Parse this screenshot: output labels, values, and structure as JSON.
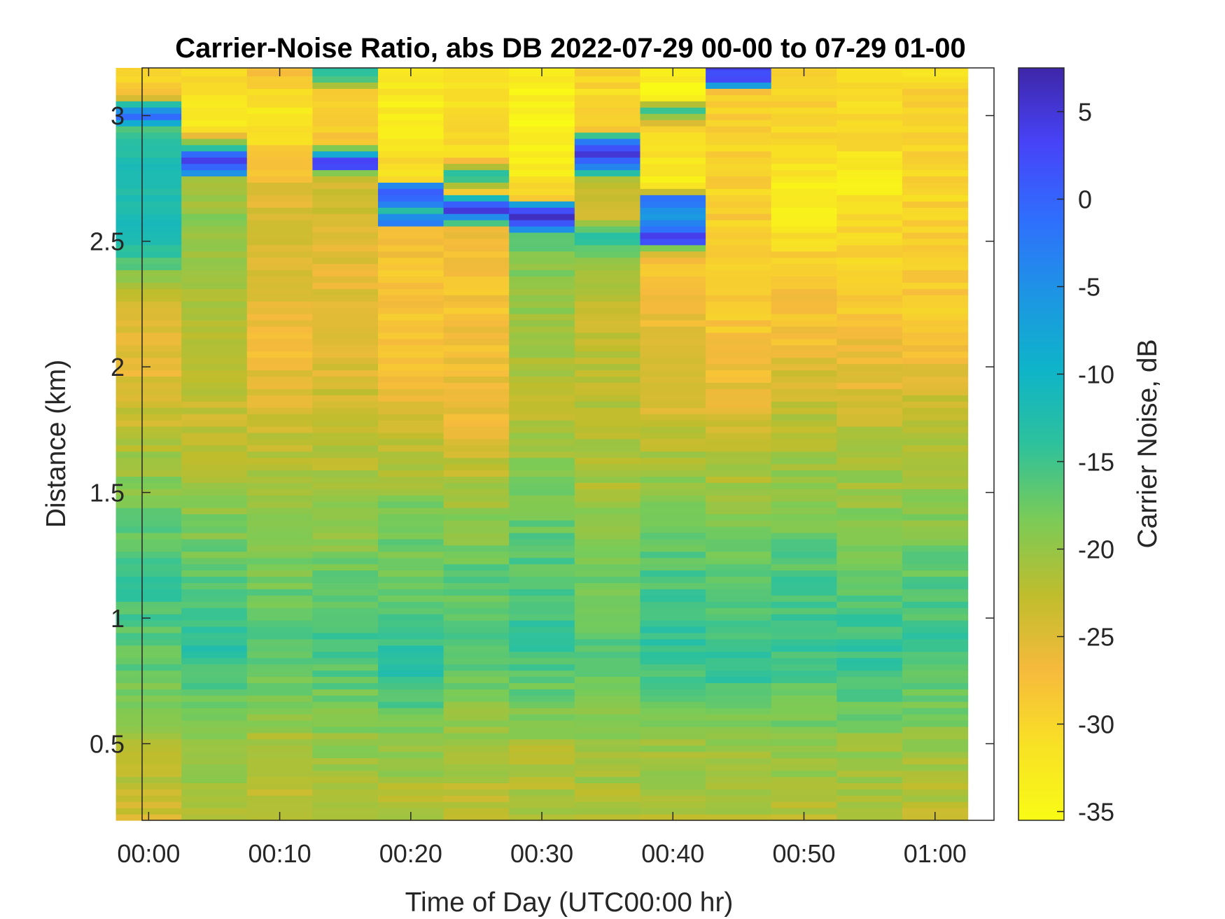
{
  "chart_data": {
    "type": "heatmap",
    "title": "Carrier-Noise Ratio, abs DB 2022-07-29 00-00 to 07-29 01-00",
    "xlabel": "Time of Day (UTC00:00 hr)",
    "ylabel": "Distance (km)",
    "colorbar_label": "Carrier Noise, dB",
    "x_unit": "minutes after 00:00",
    "xlim": [
      -0.5,
      64.5
    ],
    "ylim": [
      0.195,
      3.19
    ],
    "clim": [
      -35.5,
      7.5
    ],
    "x_ticks": [
      0,
      10,
      20,
      30,
      40,
      50,
      60
    ],
    "x_tick_labels": [
      "00:00",
      "00:10",
      "00:20",
      "00:30",
      "00:40",
      "00:50",
      "01:00"
    ],
    "y_ticks": [
      0.5,
      1,
      1.5,
      2,
      2.5,
      3
    ],
    "y_tick_labels": [
      "0.5",
      "1",
      "1.5",
      "2",
      "2.5",
      "3"
    ],
    "colorbar_ticks": [
      5,
      0,
      -5,
      -10,
      -15,
      -20,
      -25,
      -30,
      -35
    ],
    "colorbar_tick_labels": [
      "5",
      "0",
      "-5",
      "-10",
      "-15",
      "-20",
      "-25",
      "-30",
      "-35"
    ],
    "colormap": "parula",
    "colormap_stops": [
      "#3e26a8",
      "#4743f8",
      "#2f6efd",
      "#1d95e4",
      "#0eb4c9",
      "#2dc19c",
      "#7acb57",
      "#bfbd2d",
      "#f6ba3c",
      "#f8e125",
      "#f9fb15"
    ],
    "grid": false,
    "times": [
      0,
      5,
      10,
      15,
      20,
      25,
      30,
      35,
      40,
      45,
      50,
      55,
      60
    ],
    "profiles": [
      {
        "time": 0,
        "points": [
          [
            0.2,
            -24
          ],
          [
            0.5,
            -21
          ],
          [
            0.8,
            -17
          ],
          [
            1.1,
            -15
          ],
          [
            1.4,
            -17
          ],
          [
            1.7,
            -22
          ],
          [
            2.0,
            -26
          ],
          [
            2.3,
            -24
          ],
          [
            2.45,
            -13
          ],
          [
            2.6,
            -12
          ],
          [
            2.8,
            -13
          ],
          [
            2.95,
            -16
          ],
          [
            3.0,
            0
          ],
          [
            3.04,
            -10
          ],
          [
            3.08,
            -28
          ],
          [
            3.19,
            -31
          ]
        ]
      },
      {
        "time": 5,
        "points": [
          [
            0.2,
            -21
          ],
          [
            0.5,
            -20
          ],
          [
            0.9,
            -13
          ],
          [
            1.2,
            -17
          ],
          [
            1.5,
            -20
          ],
          [
            1.8,
            -23
          ],
          [
            2.1,
            -22
          ],
          [
            2.4,
            -20
          ],
          [
            2.6,
            -19
          ],
          [
            2.75,
            -22
          ],
          [
            2.78,
            0
          ],
          [
            2.84,
            4
          ],
          [
            2.87,
            -14
          ],
          [
            2.95,
            -32
          ],
          [
            3.19,
            -31
          ]
        ]
      },
      {
        "time": 10,
        "points": [
          [
            0.2,
            -23
          ],
          [
            0.5,
            -21
          ],
          [
            0.9,
            -16
          ],
          [
            1.2,
            -18
          ],
          [
            1.5,
            -21
          ],
          [
            1.8,
            -24
          ],
          [
            2.1,
            -27
          ],
          [
            2.4,
            -25
          ],
          [
            2.7,
            -25
          ],
          [
            2.8,
            -28
          ],
          [
            3.0,
            -33
          ],
          [
            3.19,
            -27
          ]
        ]
      },
      {
        "time": 15,
        "points": [
          [
            0.2,
            -22
          ],
          [
            0.5,
            -20
          ],
          [
            0.9,
            -15
          ],
          [
            1.2,
            -18
          ],
          [
            1.5,
            -21
          ],
          [
            1.8,
            -23
          ],
          [
            2.1,
            -26
          ],
          [
            2.4,
            -25
          ],
          [
            2.7,
            -24
          ],
          [
            2.77,
            -22
          ],
          [
            2.79,
            3
          ],
          [
            2.83,
            2
          ],
          [
            2.86,
            -15
          ],
          [
            2.9,
            -29
          ],
          [
            3.1,
            -29
          ],
          [
            3.15,
            -13
          ],
          [
            3.19,
            -13
          ]
        ]
      },
      {
        "time": 20,
        "points": [
          [
            0.2,
            -22
          ],
          [
            0.5,
            -20
          ],
          [
            0.8,
            -13
          ],
          [
            1.1,
            -17
          ],
          [
            1.4,
            -18
          ],
          [
            1.7,
            -23
          ],
          [
            2.0,
            -27
          ],
          [
            2.3,
            -28
          ],
          [
            2.55,
            -27
          ],
          [
            2.58,
            3
          ],
          [
            2.62,
            -13
          ],
          [
            2.66,
            1
          ],
          [
            2.72,
            -2
          ],
          [
            2.74,
            -30
          ],
          [
            3.0,
            -33
          ],
          [
            3.19,
            -32
          ]
        ]
      },
      {
        "time": 25,
        "points": [
          [
            0.2,
            -23
          ],
          [
            0.5,
            -21
          ],
          [
            0.9,
            -16
          ],
          [
            1.2,
            -17
          ],
          [
            1.5,
            -21
          ],
          [
            1.8,
            -26
          ],
          [
            2.1,
            -27
          ],
          [
            2.4,
            -28
          ],
          [
            2.55,
            -26
          ],
          [
            2.59,
            -8
          ],
          [
            2.62,
            4
          ],
          [
            2.66,
            -1
          ],
          [
            2.7,
            -29
          ],
          [
            2.76,
            -12
          ],
          [
            2.83,
            -30
          ],
          [
            3.0,
            -31
          ],
          [
            3.19,
            -30
          ]
        ]
      },
      {
        "time": 30,
        "points": [
          [
            0.2,
            -22
          ],
          [
            0.5,
            -21
          ],
          [
            0.9,
            -14
          ],
          [
            1.2,
            -16
          ],
          [
            1.5,
            -18
          ],
          [
            1.8,
            -22
          ],
          [
            2.1,
            -21
          ],
          [
            2.4,
            -19
          ],
          [
            2.53,
            -16
          ],
          [
            2.56,
            0
          ],
          [
            2.6,
            5
          ],
          [
            2.64,
            -1
          ],
          [
            2.67,
            -30
          ],
          [
            2.8,
            -33
          ],
          [
            3.0,
            -34
          ],
          [
            3.19,
            -33
          ]
        ]
      },
      {
        "time": 35,
        "points": [
          [
            0.2,
            -22
          ],
          [
            0.5,
            -20
          ],
          [
            0.9,
            -16
          ],
          [
            1.2,
            -18
          ],
          [
            1.5,
            -21
          ],
          [
            1.8,
            -22
          ],
          [
            2.2,
            -23
          ],
          [
            2.48,
            -18
          ],
          [
            2.52,
            -12
          ],
          [
            2.6,
            -24
          ],
          [
            2.75,
            -23
          ],
          [
            2.79,
            -5
          ],
          [
            2.85,
            4
          ],
          [
            2.9,
            -3
          ],
          [
            2.95,
            -30
          ],
          [
            3.19,
            -30
          ]
        ]
      },
      {
        "time": 40,
        "points": [
          [
            0.2,
            -22
          ],
          [
            0.5,
            -20
          ],
          [
            0.9,
            -14
          ],
          [
            1.2,
            -16
          ],
          [
            1.5,
            -19
          ],
          [
            1.8,
            -24
          ],
          [
            2.1,
            -26
          ],
          [
            2.4,
            -28
          ],
          [
            2.47,
            -22
          ],
          [
            2.5,
            4
          ],
          [
            2.53,
            2
          ],
          [
            2.57,
            -2
          ],
          [
            2.62,
            -7
          ],
          [
            2.67,
            -1
          ],
          [
            2.71,
            -33
          ],
          [
            2.95,
            -30
          ],
          [
            3.02,
            -14
          ],
          [
            3.08,
            -35
          ],
          [
            3.19,
            -32
          ]
        ]
      },
      {
        "time": 45,
        "points": [
          [
            0.2,
            -22
          ],
          [
            0.5,
            -20
          ],
          [
            0.8,
            -14
          ],
          [
            1.1,
            -16
          ],
          [
            1.4,
            -19
          ],
          [
            1.7,
            -23
          ],
          [
            2.0,
            -27
          ],
          [
            2.3,
            -29
          ],
          [
            2.6,
            -29
          ],
          [
            2.9,
            -30
          ],
          [
            3.1,
            -28
          ],
          [
            3.13,
            2
          ],
          [
            3.19,
            3
          ]
        ]
      },
      {
        "time": 50,
        "points": [
          [
            0.2,
            -22
          ],
          [
            0.5,
            -19
          ],
          [
            0.9,
            -15
          ],
          [
            1.2,
            -16
          ],
          [
            1.5,
            -19
          ],
          [
            1.8,
            -22
          ],
          [
            2.1,
            -27
          ],
          [
            2.4,
            -28
          ],
          [
            2.63,
            -34
          ],
          [
            2.9,
            -30
          ],
          [
            3.19,
            -29
          ]
        ]
      },
      {
        "time": 55,
        "points": [
          [
            0.2,
            -22
          ],
          [
            0.5,
            -20
          ],
          [
            0.8,
            -14
          ],
          [
            1.1,
            -16
          ],
          [
            1.4,
            -19
          ],
          [
            1.7,
            -22
          ],
          [
            2.0,
            -26
          ],
          [
            2.3,
            -29
          ],
          [
            2.6,
            -30
          ],
          [
            2.75,
            -34
          ],
          [
            2.9,
            -30
          ],
          [
            3.19,
            -31
          ]
        ]
      },
      {
        "time": 60,
        "points": [
          [
            0.2,
            -23
          ],
          [
            0.5,
            -20
          ],
          [
            0.9,
            -15
          ],
          [
            1.2,
            -17
          ],
          [
            1.5,
            -20
          ],
          [
            1.8,
            -22
          ],
          [
            2.1,
            -28
          ],
          [
            2.4,
            -29
          ],
          [
            2.7,
            -30
          ],
          [
            3.0,
            -29
          ],
          [
            3.19,
            -31
          ]
        ]
      }
    ]
  }
}
